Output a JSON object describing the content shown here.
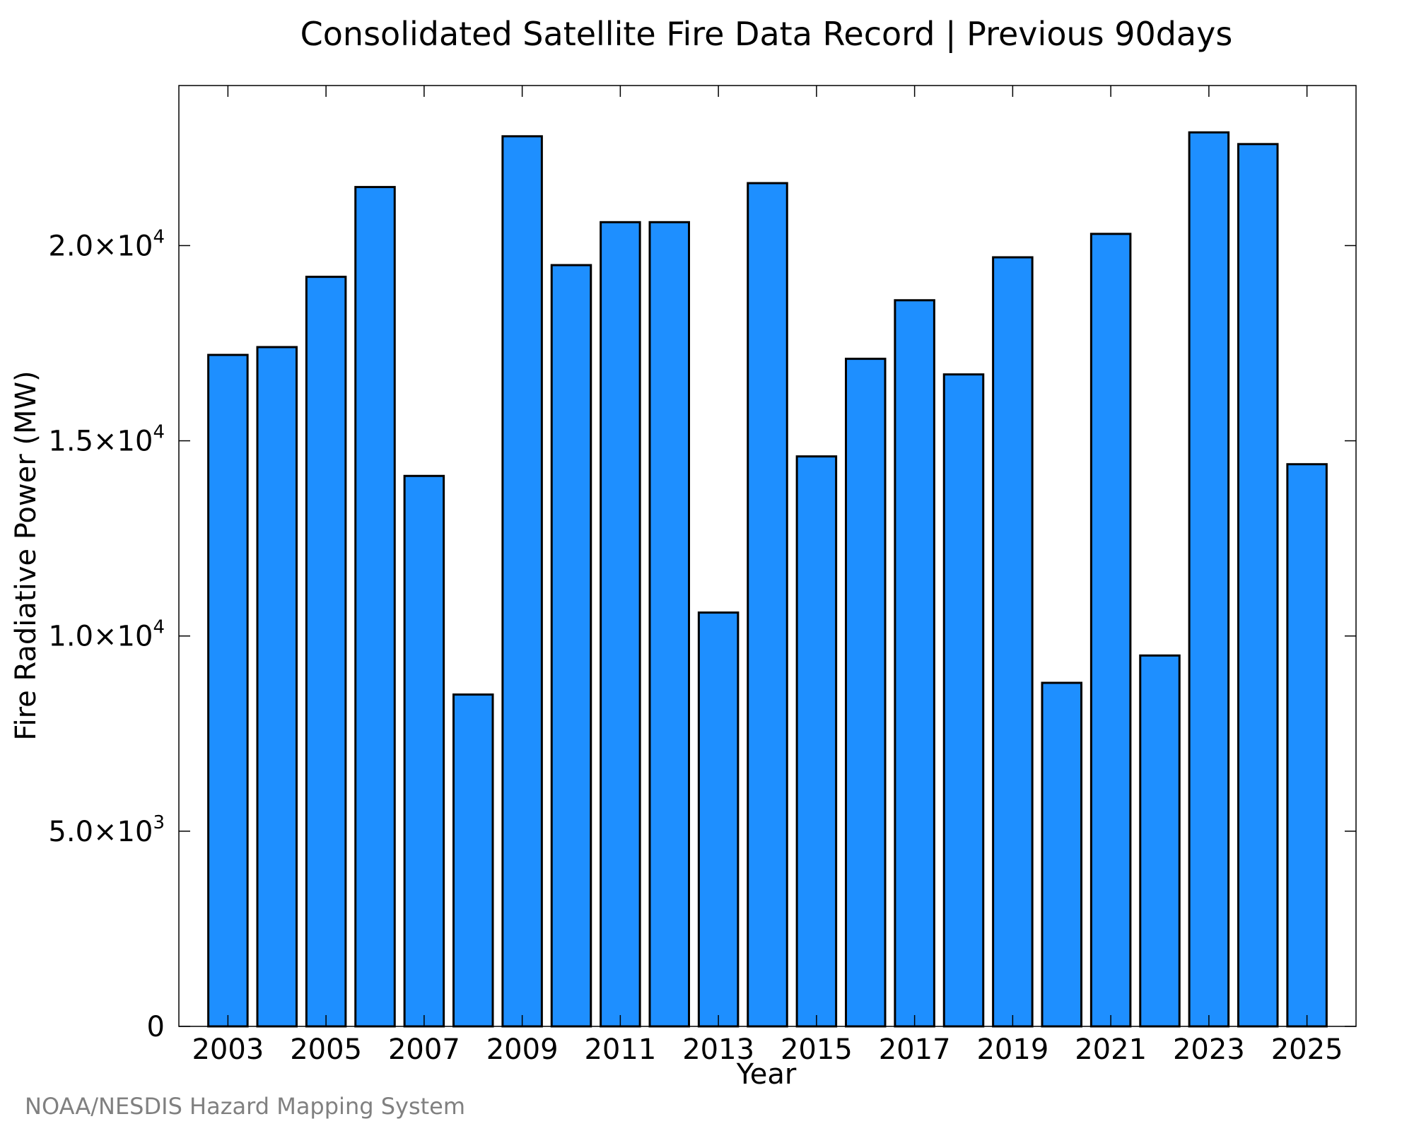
{
  "chart_data": {
    "type": "bar",
    "title": "Consolidated Satellite Fire Data Record | Previous 90days",
    "xlabel": "Year",
    "ylabel": "Fire Radiative Power (MW)",
    "credit": "NOAA/NESDIS Hazard Mapping System",
    "categories": [
      2003,
      2004,
      2005,
      2006,
      2007,
      2008,
      2009,
      2010,
      2011,
      2012,
      2013,
      2014,
      2015,
      2016,
      2017,
      2018,
      2019,
      2020,
      2021,
      2022,
      2023,
      2024,
      2025
    ],
    "values": [
      17200,
      17400,
      19200,
      21500,
      14100,
      8500,
      22800,
      19500,
      20600,
      20600,
      10600,
      21600,
      14600,
      17100,
      18600,
      16700,
      19700,
      8800,
      20300,
      9500,
      22900,
      22600,
      14400
    ],
    "x_tick_labels": [
      "2003",
      "2005",
      "2007",
      "2009",
      "2011",
      "2013",
      "2015",
      "2017",
      "2019",
      "2021",
      "2023",
      "2025"
    ],
    "y_ticks": [
      {
        "value": 0,
        "mantissa": "0",
        "exponent": ""
      },
      {
        "value": 5000,
        "mantissa": "5.0×10",
        "exponent": "3"
      },
      {
        "value": 10000,
        "mantissa": "1.0×10",
        "exponent": "4"
      },
      {
        "value": 15000,
        "mantissa": "1.5×10",
        "exponent": "4"
      },
      {
        "value": 20000,
        "mantissa": "2.0×10",
        "exponent": "4"
      }
    ],
    "ylim": [
      0,
      24100
    ],
    "xlim": [
      2002,
      2026
    ],
    "bar_color": "#1e8fff",
    "grid": false,
    "legend": "none"
  }
}
